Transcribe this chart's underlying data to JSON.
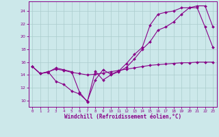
{
  "xlabel": "Windchill (Refroidissement éolien,°C)",
  "bg_color": "#cce8ea",
  "grid_color": "#aacccc",
  "line_color": "#880088",
  "xlim": [
    -0.5,
    23.5
  ],
  "ylim": [
    9,
    25.5
  ],
  "yticks": [
    10,
    12,
    14,
    16,
    18,
    20,
    22,
    24
  ],
  "xticks": [
    0,
    1,
    2,
    3,
    4,
    5,
    6,
    7,
    8,
    9,
    10,
    11,
    12,
    13,
    14,
    15,
    16,
    17,
    18,
    19,
    20,
    21,
    22,
    23
  ],
  "line1_x": [
    0,
    1,
    2,
    3,
    4,
    5,
    6,
    7,
    8,
    9,
    10,
    11,
    12,
    13,
    14,
    15,
    16,
    17,
    18,
    19,
    20,
    21,
    22,
    23
  ],
  "line1_y": [
    15.3,
    14.2,
    14.4,
    15.1,
    14.8,
    14.5,
    11.3,
    9.8,
    14.6,
    13.2,
    14.0,
    14.5,
    15.2,
    16.5,
    18.0,
    19.2,
    21.0,
    21.5,
    22.3,
    23.5,
    24.5,
    24.8,
    24.8,
    21.5
  ],
  "line2_x": [
    0,
    1,
    2,
    3,
    4,
    5,
    6,
    7,
    8,
    9,
    10,
    11,
    12,
    13,
    14,
    15,
    16,
    17,
    18,
    19,
    20,
    21,
    22,
    23
  ],
  "line2_y": [
    15.3,
    14.2,
    14.5,
    13.0,
    12.5,
    11.5,
    11.0,
    9.9,
    13.2,
    14.8,
    14.1,
    14.6,
    15.8,
    17.2,
    18.3,
    21.8,
    23.5,
    23.8,
    24.0,
    24.5,
    24.5,
    24.5,
    21.5,
    18.3
  ],
  "line3_x": [
    0,
    1,
    2,
    3,
    4,
    5,
    6,
    7,
    8,
    9,
    10,
    11,
    12,
    13,
    14,
    15,
    16,
    17,
    18,
    19,
    20,
    21,
    22,
    23
  ],
  "line3_y": [
    15.3,
    14.2,
    14.5,
    14.9,
    14.7,
    14.4,
    14.2,
    14.0,
    14.1,
    14.3,
    14.5,
    14.7,
    14.9,
    15.1,
    15.3,
    15.5,
    15.6,
    15.7,
    15.8,
    15.9,
    15.9,
    16.0,
    16.0,
    16.0
  ]
}
